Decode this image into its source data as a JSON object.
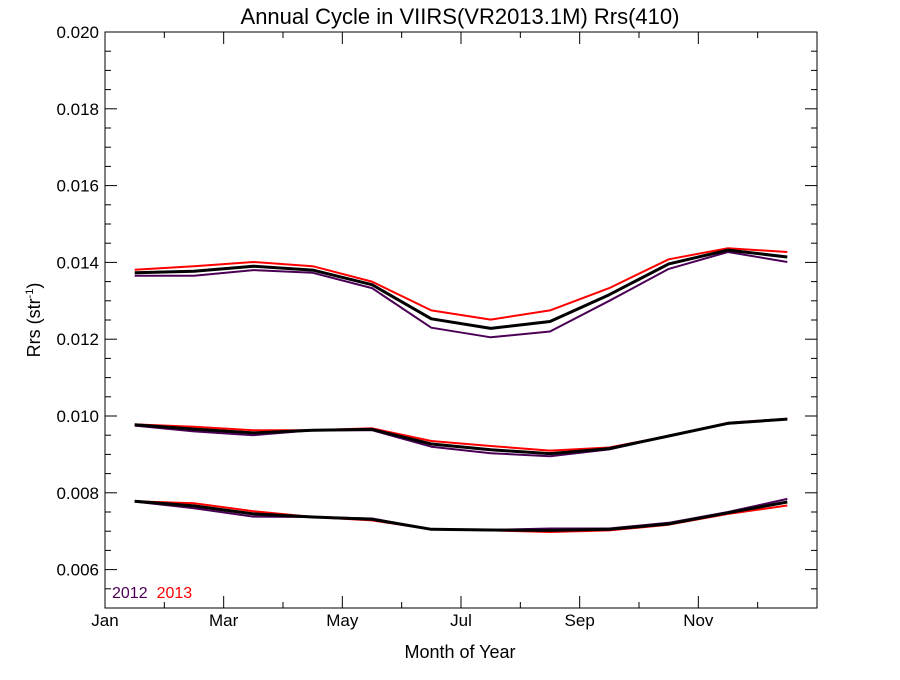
{
  "chart_data": {
    "type": "line",
    "title": "Annual Cycle in VIIRS(VR2013.1M) Rrs(410)",
    "xlabel": "Month of Year",
    "ylabel": "Rrs (str",
    "ylabel_sup": "-1",
    "ylabel_close": ")",
    "xlim": [
      1,
      13
    ],
    "ylim": [
      0.005,
      0.02
    ],
    "x_ticks": [
      1,
      3,
      5,
      7,
      9,
      11
    ],
    "x_tick_labels": [
      "Jan",
      "Mar",
      "May",
      "Jul",
      "Sep",
      "Nov"
    ],
    "y_ticks": [
      0.006,
      0.008,
      0.01,
      0.012,
      0.014,
      0.016,
      0.018,
      0.02
    ],
    "y_tick_labels": [
      "0.006",
      "0.008",
      "0.010",
      "0.012",
      "0.014",
      "0.016",
      "0.018",
      "0.020"
    ],
    "grid": false,
    "legend_position": "bottom-left",
    "x": [
      1.5,
      2.5,
      3.5,
      4.5,
      5.5,
      6.5,
      7.5,
      8.5,
      9.5,
      10.5,
      11.5,
      12.5
    ],
    "series": [
      {
        "group": "upper",
        "name": "2012",
        "color": "#4B0055",
        "values": [
          0.01365,
          0.01365,
          0.0138,
          0.01373,
          0.01333,
          0.0123,
          0.01205,
          0.0122,
          0.013,
          0.01383,
          0.01427,
          0.01401
        ]
      },
      {
        "group": "upper",
        "name": "2013",
        "color": "#FF0000",
        "values": [
          0.01381,
          0.0139,
          0.01401,
          0.0139,
          0.0135,
          0.01275,
          0.01251,
          0.01275,
          0.01333,
          0.01408,
          0.01437,
          0.01427
        ]
      },
      {
        "group": "upper",
        "color": "#000000",
        "values": [
          0.01373,
          0.01377,
          0.0139,
          0.0138,
          0.01342,
          0.01253,
          0.01228,
          0.01246,
          0.01316,
          0.01396,
          0.01432,
          0.01414
        ]
      },
      {
        "group": "middle",
        "name": "2012",
        "color": "#4B0055",
        "values": [
          0.00975,
          0.0096,
          0.0095,
          0.00963,
          0.00963,
          0.0092,
          0.00903,
          0.00895,
          0.00913,
          0.00948,
          0.0098,
          0.00992
        ]
      },
      {
        "group": "middle",
        "name": "2013",
        "color": "#FF0000",
        "values": [
          0.00978,
          0.00972,
          0.00963,
          0.00963,
          0.00968,
          0.00935,
          0.00922,
          0.0091,
          0.00918,
          0.00948,
          0.00982,
          0.00993
        ]
      },
      {
        "group": "middle",
        "color": "#000000",
        "values": [
          0.00977,
          0.00966,
          0.00956,
          0.00963,
          0.00965,
          0.00927,
          0.00912,
          0.00902,
          0.00915,
          0.00948,
          0.00981,
          0.00992
        ]
      },
      {
        "group": "lower",
        "name": "2012",
        "color": "#4B0055",
        "values": [
          0.00777,
          0.0076,
          0.00738,
          0.00737,
          0.00733,
          0.00705,
          0.00703,
          0.00707,
          0.00707,
          0.00722,
          0.0075,
          0.00784
        ]
      },
      {
        "group": "lower",
        "name": "2013",
        "color": "#FF0000",
        "values": [
          0.00778,
          0.00773,
          0.00752,
          0.00737,
          0.00728,
          0.00705,
          0.00702,
          0.00698,
          0.00702,
          0.00717,
          0.00745,
          0.00767
        ]
      },
      {
        "group": "lower",
        "color": "#000000",
        "values": [
          0.00778,
          0.00766,
          0.00745,
          0.00737,
          0.00731,
          0.00705,
          0.00703,
          0.00702,
          0.00705,
          0.00719,
          0.00748,
          0.00776
        ]
      }
    ],
    "legend": [
      {
        "label": "2012",
        "color": "#4B0055"
      },
      {
        "label": "2013",
        "color": "#FF0000"
      }
    ]
  }
}
